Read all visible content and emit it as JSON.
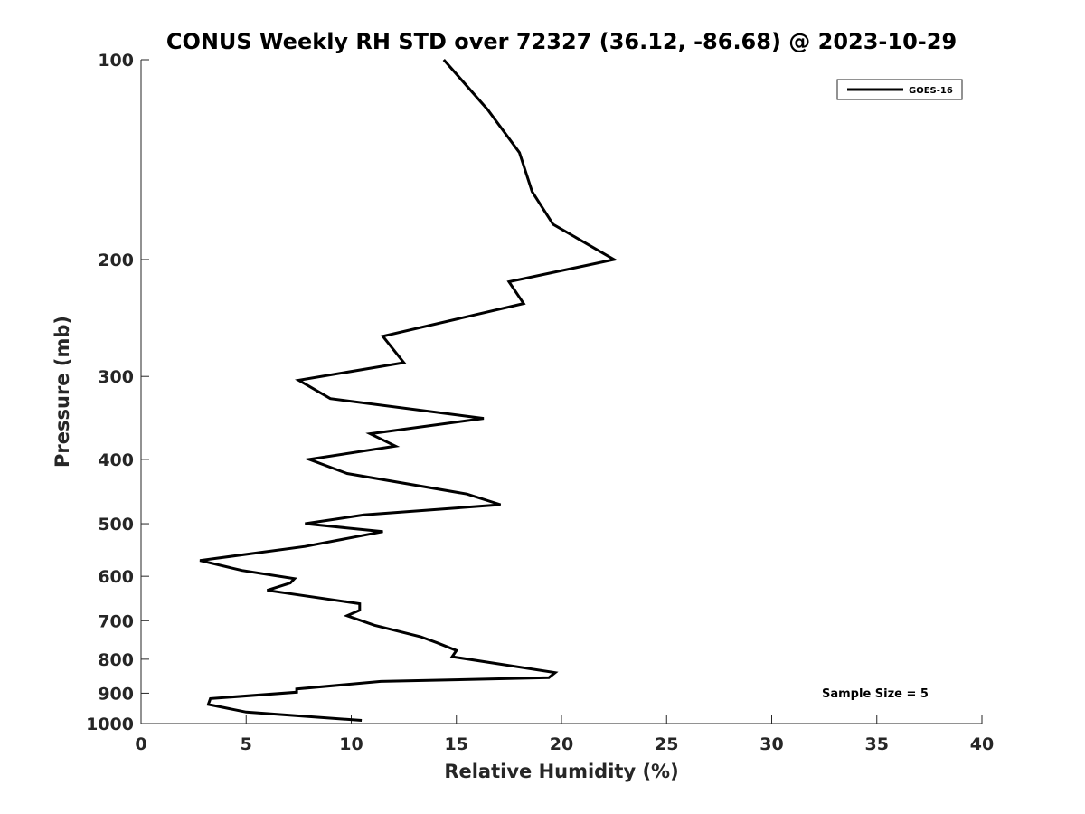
{
  "chart_data": {
    "type": "line",
    "title": "CONUS Weekly RH STD over 72327 (36.12, -86.68) @ 2023-10-29",
    "xlabel": "Relative Humidity (%)",
    "ylabel": "Pressure (mb)",
    "xlim": [
      0,
      40
    ],
    "ylim": [
      100,
      1000
    ],
    "yscale": "log",
    "yreversed": true,
    "xticks": [
      0,
      5,
      10,
      15,
      20,
      25,
      30,
      35,
      40
    ],
    "yticks": [
      100,
      200,
      300,
      400,
      500,
      600,
      700,
      800,
      900,
      1000
    ],
    "grid": false,
    "legend_position": "top-right",
    "series": [
      {
        "name": "GOES-16",
        "color": "#000000",
        "x": [
          14.4,
          16.5,
          18.0,
          18.6,
          19.6,
          22.5,
          17.5,
          18.2,
          11.5,
          12.5,
          7.5,
          9.0,
          16.3,
          10.9,
          12.1,
          8.0,
          9.8,
          15.5,
          17.1,
          10.6,
          7.8,
          11.5,
          7.8,
          2.8,
          4.8,
          7.3,
          7.1,
          6.0,
          10.4,
          10.4,
          9.8,
          11.1,
          13.3,
          14.1,
          15.0,
          14.8,
          19.7,
          19.4,
          11.4,
          7.4,
          7.4,
          3.3,
          3.2,
          5.0,
          10.5
        ],
        "y": [
          100,
          119,
          138,
          158,
          177,
          200,
          216,
          233,
          261,
          286,
          304,
          324,
          347,
          366,
          382,
          400,
          420,
          451,
          468,
          485,
          500,
          514,
          541,
          568,
          588,
          605,
          614,
          630,
          660,
          675,
          688,
          711,
          740,
          756,
          776,
          793,
          838,
          853,
          864,
          887,
          897,
          917,
          936,
          961,
          989
        ]
      }
    ],
    "annotations": [
      "Sample Size = 5"
    ]
  }
}
